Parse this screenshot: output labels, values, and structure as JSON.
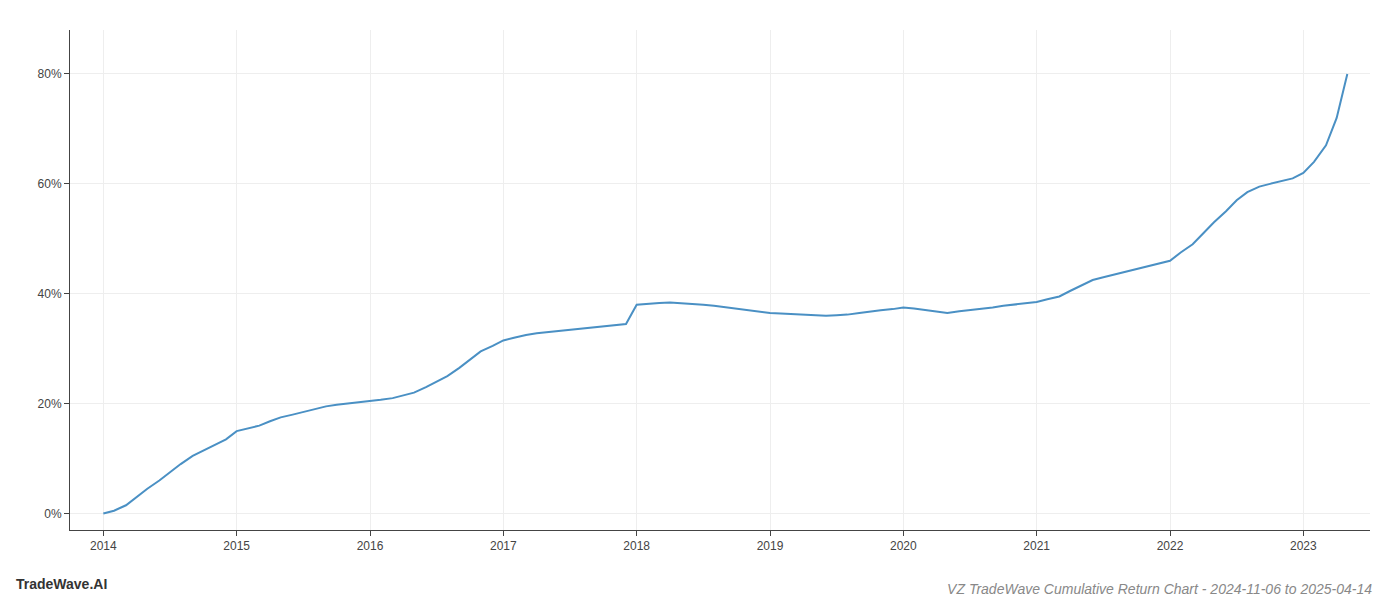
{
  "chart_data": {
    "type": "line",
    "title": "VZ TradeWave Cumulative Return Chart - 2024-11-06 to 2025-04-14",
    "annotations": [
      "TradeWave.AI"
    ],
    "color": "#4a90c4",
    "grid": true,
    "x": [
      2014.0,
      2014.08,
      2014.17,
      2014.25,
      2014.33,
      2014.42,
      2014.5,
      2014.58,
      2014.67,
      2014.75,
      2014.83,
      2014.92,
      2015.0,
      2015.08,
      2015.17,
      2015.25,
      2015.33,
      2015.42,
      2015.5,
      2015.58,
      2015.67,
      2015.75,
      2015.83,
      2015.92,
      2016.0,
      2016.08,
      2016.17,
      2016.25,
      2016.33,
      2016.42,
      2016.5,
      2016.58,
      2016.67,
      2016.75,
      2016.83,
      2016.92,
      2017.0,
      2017.08,
      2017.17,
      2017.25,
      2017.33,
      2017.42,
      2017.5,
      2017.58,
      2017.67,
      2017.75,
      2017.83,
      2017.92,
      2018.0,
      2018.08,
      2018.17,
      2018.25,
      2018.33,
      2018.42,
      2018.5,
      2018.58,
      2018.67,
      2018.75,
      2018.83,
      2018.92,
      2019.0,
      2019.08,
      2019.17,
      2019.25,
      2019.33,
      2019.42,
      2019.5,
      2019.58,
      2019.67,
      2019.75,
      2019.83,
      2019.92,
      2020.0,
      2020.08,
      2020.17,
      2020.25,
      2020.33,
      2020.42,
      2020.5,
      2020.58,
      2020.67,
      2020.75,
      2020.83,
      2020.92,
      2021.0,
      2021.08,
      2021.17,
      2021.25,
      2021.33,
      2021.42,
      2021.5,
      2021.58,
      2021.67,
      2021.75,
      2021.83,
      2021.92,
      2022.0,
      2022.08,
      2022.17,
      2022.25,
      2022.33,
      2022.42,
      2022.5,
      2022.58,
      2022.67,
      2022.75,
      2022.83,
      2022.92,
      2023.0,
      2023.08,
      2023.17,
      2023.25,
      2023.33
    ],
    "values": [
      0.0,
      0.5,
      1.5,
      3.0,
      4.5,
      6.0,
      7.5,
      9.0,
      10.5,
      11.5,
      12.5,
      13.5,
      15.0,
      15.5,
      16.0,
      16.8,
      17.5,
      18.0,
      18.5,
      19.0,
      19.5,
      19.8,
      20.0,
      20.2,
      20.5,
      20.7,
      21.0,
      21.5,
      22.0,
      23.0,
      24.0,
      25.0,
      26.5,
      28.0,
      29.5,
      30.5,
      31.5,
      32.0,
      32.5,
      32.8,
      33.0,
      33.2,
      33.5,
      33.7,
      33.9,
      34.1,
      34.3,
      34.5,
      38.0,
      38.2,
      38.3,
      38.4,
      38.3,
      38.2,
      38.0,
      37.8,
      37.5,
      37.3,
      37.1,
      36.8,
      36.5,
      36.4,
      36.3,
      36.2,
      36.1,
      36.0,
      36.1,
      36.2,
      36.5,
      36.8,
      37.0,
      37.2,
      37.5,
      37.3,
      37.0,
      36.8,
      36.5,
      36.8,
      37.0,
      37.2,
      37.5,
      37.8,
      38.0,
      38.2,
      38.5,
      39.0,
      39.5,
      40.5,
      41.5,
      42.5,
      43.0,
      43.5,
      44.0,
      44.5,
      45.0,
      45.5,
      46.0,
      47.5,
      49.0,
      51.0,
      53.0,
      55.0,
      57.0,
      58.5,
      59.5,
      60.0,
      60.5,
      61.0,
      62.0,
      64.0,
      67.0,
      72.0,
      80.0
    ],
    "xlim": [
      2013.75,
      2023.5
    ],
    "xticks": [
      2014,
      2015,
      2016,
      2017,
      2018,
      2019,
      2020,
      2021,
      2022,
      2023
    ],
    "ylim": [
      -3,
      88
    ],
    "yticks": [
      {
        "value": 0,
        "label": "0%"
      },
      {
        "value": 20,
        "label": "20%"
      },
      {
        "value": 40,
        "label": "40%"
      },
      {
        "value": 60,
        "label": "60%"
      },
      {
        "value": 80,
        "label": "80%"
      }
    ]
  }
}
